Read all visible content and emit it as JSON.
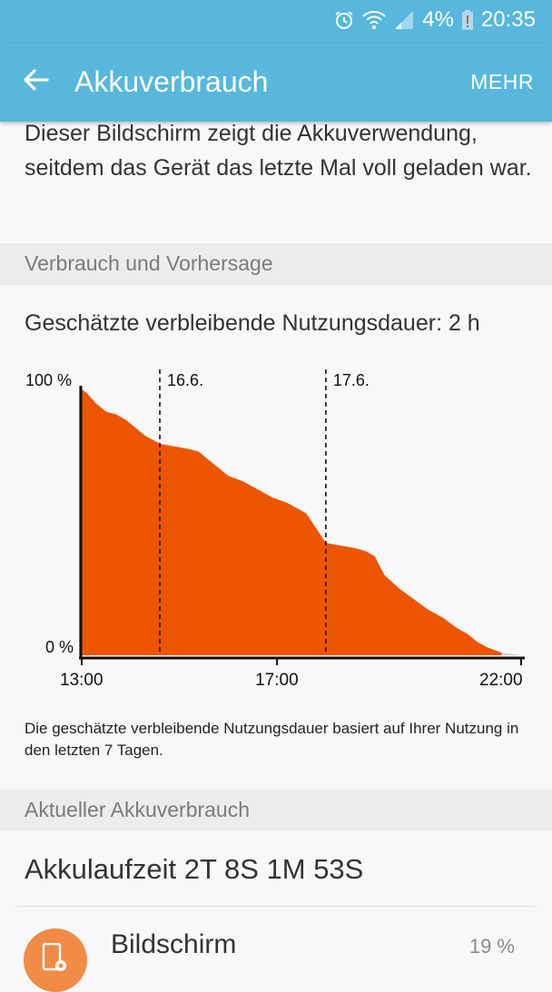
{
  "status": {
    "battery_pct": "4%",
    "time": "20:35"
  },
  "appbar": {
    "title": "Akkuverbrauch",
    "more_label": "MEHR"
  },
  "intro_text": "Dieser Bildschirm zeigt die Akkuverwendung, seitdem das Gerät das letzte Mal voll geladen war.",
  "section_usage": "Verbrauch und Vorhersage",
  "remaining_text": "Geschätzte verbleibende Nutzungsdauer: 2 h",
  "chart_data": {
    "type": "area",
    "title": "",
    "ylabel": "",
    "xlabel": "",
    "y_tick_labels": [
      "100 %",
      "0 %"
    ],
    "x_tick_labels": [
      "13:00",
      "17:00",
      "22:00"
    ],
    "x_ticks_hours": [
      13,
      17,
      22
    ],
    "xlim": [
      13,
      22
    ],
    "ylim": [
      0,
      100
    ],
    "day_markers": [
      {
        "label": "16.6.",
        "x": 14.6
      },
      {
        "label": "17.6.",
        "x": 18.0
      }
    ],
    "series": [
      {
        "x": [
          12.95,
          13.1,
          13.3,
          13.5,
          13.7,
          13.9,
          14.1,
          14.3,
          14.6,
          14.9,
          15.2,
          15.4,
          15.6,
          15.8,
          16.0,
          16.3,
          16.6,
          16.9,
          17.2,
          17.6,
          18.0,
          18.3,
          18.6,
          18.8,
          19.0,
          19.2,
          19.5,
          19.8,
          20.1,
          20.4,
          20.7,
          20.9,
          21.1,
          21.3,
          21.6
        ],
        "y": [
          100,
          98,
          94,
          91,
          90,
          88,
          85,
          82,
          79,
          78,
          77,
          76,
          73,
          70,
          67,
          65,
          62,
          59,
          57,
          53,
          42,
          41,
          40,
          39,
          37,
          30,
          25,
          21,
          17,
          14,
          10,
          8,
          5,
          3,
          1
        ]
      }
    ],
    "fill_color": "#ee5500",
    "forecast_color": "#d0d0d0",
    "grid": false
  },
  "note_text": "Die geschätzte verbleibende Nutzungsdauer basiert auf Ihrer Nutzung in den letzten 7 Tagen.",
  "section_current": "Aktueller Akkuverbrauch",
  "runtime_text": "Akkulaufzeit 2T 8S 1M 53S",
  "apps": [
    {
      "name": "Bildschirm",
      "percent": "19 %",
      "icon": "screen-icon"
    }
  ]
}
